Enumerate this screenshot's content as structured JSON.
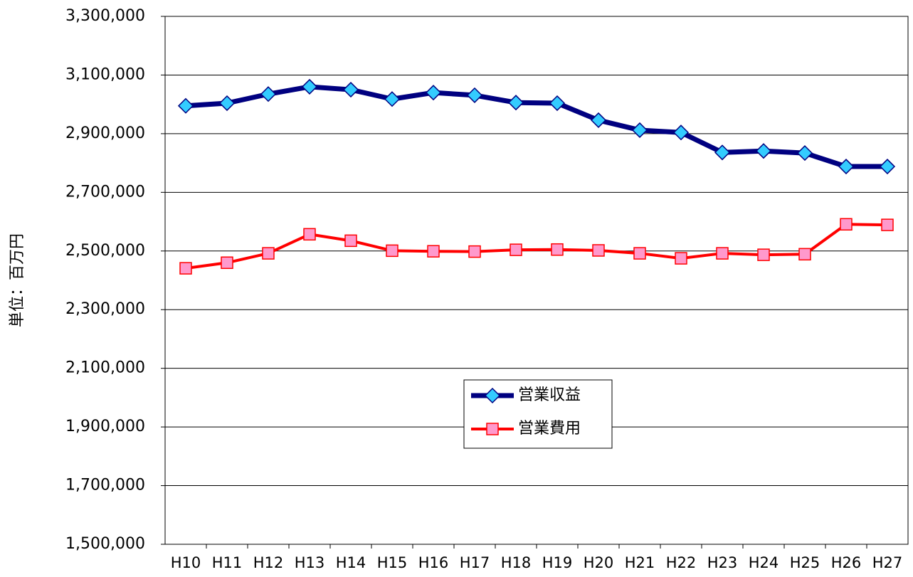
{
  "chart_data": {
    "type": "line",
    "y_label": "単位：百万円",
    "categories": [
      "H10",
      "H11",
      "H12",
      "H13",
      "H14",
      "H15",
      "H16",
      "H17",
      "H18",
      "H19",
      "H20",
      "H21",
      "H22",
      "H23",
      "H24",
      "H25",
      "H26",
      "H27"
    ],
    "series": [
      {
        "name": "営業収益",
        "color": "#000080",
        "marker_color": "#33ccff",
        "marker": "diamond",
        "values": [
          2995000,
          3004000,
          3035000,
          3060000,
          3050000,
          3018000,
          3040000,
          3031000,
          3006000,
          3004000,
          2946000,
          2912000,
          2904000,
          2836000,
          2841000,
          2834000,
          2788000,
          2788000
        ]
      },
      {
        "name": "営業費用",
        "color": "#ff0000",
        "marker_color": "#ff99cc",
        "marker": "square",
        "values": [
          2441000,
          2460000,
          2492000,
          2557000,
          2535000,
          2501000,
          2499000,
          2498000,
          2504000,
          2505000,
          2502000,
          2492000,
          2475000,
          2492000,
          2487000,
          2489000,
          2591000,
          2589000
        ]
      }
    ],
    "ylim": [
      1500000,
      3300000
    ],
    "yticks": [
      {
        "value": 1500000,
        "label": "1,500,000"
      },
      {
        "value": 1700000,
        "label": "1,700,000"
      },
      {
        "value": 1900000,
        "label": "1,900,000"
      },
      {
        "value": 2100000,
        "label": "2,100,000"
      },
      {
        "value": 2300000,
        "label": "2,300,000"
      },
      {
        "value": 2500000,
        "label": "2,500,000"
      },
      {
        "value": 2700000,
        "label": "2,700,000"
      },
      {
        "value": 2900000,
        "label": "2,900,000"
      },
      {
        "value": 3100000,
        "label": "3,100,000"
      },
      {
        "value": 3300000,
        "label": "3,300,000"
      }
    ],
    "grid": true,
    "legend": "center"
  }
}
